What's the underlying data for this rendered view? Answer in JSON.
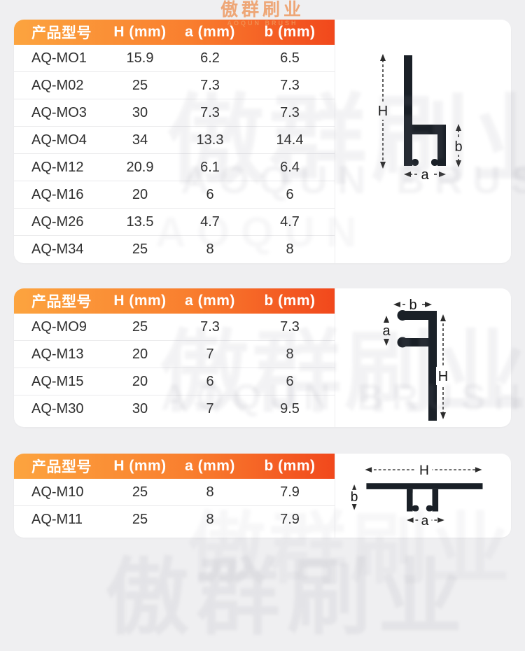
{
  "brand": {
    "logo_cn": "傲群刷业",
    "logo_en": "AOQUN BRUSH"
  },
  "watermarks": {
    "cn": "傲群刷业",
    "en": "AOQUN BRUSH",
    "en_short": "AOQUN"
  },
  "colors": {
    "header_gradient_start": "#FCA43F",
    "header_gradient_end": "#F1481C",
    "profile_fill": "#1A2027",
    "page_background": "#EFEFF1",
    "header_text": "#FFFFFF",
    "body_text": "#2E2E2E"
  },
  "tables": [
    {
      "headers": [
        "产品型号",
        "H (mm)",
        "a (mm)",
        "b (mm)"
      ],
      "rows": [
        [
          "AQ-MO1",
          "15.9",
          "6.2",
          "6.5"
        ],
        [
          "AQ-M02",
          "25",
          "7.3",
          "7.3"
        ],
        [
          "AQ-MO3",
          "30",
          "7.3",
          "7.3"
        ],
        [
          "AQ-MO4",
          "34",
          "13.3",
          "14.4"
        ],
        [
          "AQ-M12",
          "20.9",
          "6.1",
          "6.4"
        ],
        [
          "AQ-M16",
          "20",
          "6",
          "6"
        ],
        [
          "AQ-M26",
          "13.5",
          "4.7",
          "4.7"
        ],
        [
          "AQ-M34",
          "25",
          "8",
          "8"
        ]
      ]
    },
    {
      "headers": [
        "产品型号",
        "H (mm)",
        "a (mm)",
        "b (mm)"
      ],
      "rows": [
        [
          "AQ-MO9",
          "25",
          "7.3",
          "7.3"
        ],
        [
          "AQ-M13",
          "20",
          "7",
          "8"
        ],
        [
          "AQ-M15",
          "20",
          "6",
          "6"
        ],
        [
          "AQ-M30",
          "30",
          "7",
          "9.5"
        ]
      ]
    },
    {
      "headers": [
        "产品型号",
        "H (mm)",
        "a (mm)",
        "b (mm)"
      ],
      "rows": [
        [
          "AQ-M10",
          "25",
          "8",
          "7.9"
        ],
        [
          "AQ-M11",
          "25",
          "8",
          "7.9"
        ]
      ]
    }
  ],
  "diagrams": [
    {
      "h_label": "H",
      "a_label": "a",
      "b_label": "b"
    },
    {
      "h_label": "H",
      "a_label": "a",
      "b_label": "b"
    },
    {
      "h_label": "H",
      "a_label": "a",
      "b_label": "b"
    }
  ]
}
